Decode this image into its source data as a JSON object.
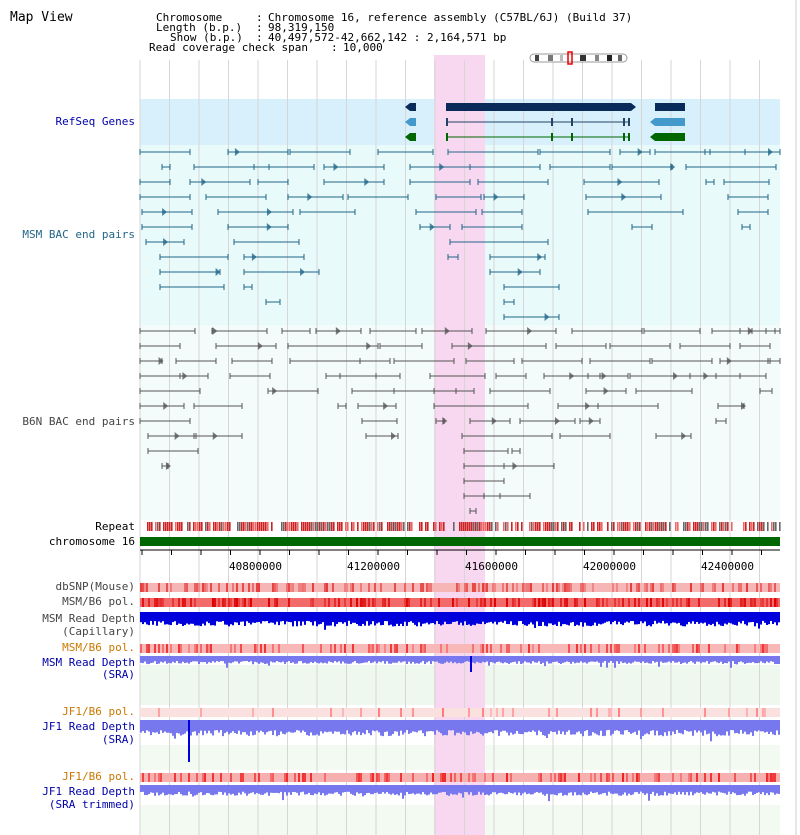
{
  "title": "Map View",
  "info": {
    "chromosome_label": "Chromosome",
    "chromosome_value": "Chromosome 16, reference assembly (C57BL/6J) (Build 37)",
    "length_label": "Length (b.p.)",
    "length_value": "98,319,150",
    "show_label": "Show (b.p.)",
    "show_value": "40,497,572-42,662,142 : 2,164,571 bp",
    "read_coverage_label": "Read coverage check span",
    "read_coverage_value": "10,000"
  },
  "tracks": {
    "refseq": "RefSeq Genes",
    "msm_bac": "MSM BAC end pairs",
    "b6n_bac": "B6N BAC end pairs",
    "repeat": "Repeat",
    "chromosome": "chromosome 16",
    "dbsnp": "dbSNP(Mouse)",
    "msm_b6_pol": "MSM/B6 pol.",
    "msm_depth_cap_1": "MSM Read Depth",
    "msm_depth_cap_2": "(Capillary)",
    "msm_b6_pol_sra": "MSM/B6 pol.",
    "msm_depth_sra_1": "MSM Read Depth",
    "msm_depth_sra_2": "(SRA)",
    "jf1_b6_pol": "JF1/B6 pol.",
    "jf1_depth_1": "JF1 Read Depth",
    "jf1_depth_2": "(SRA)",
    "jf1_b6_pol_trim": "JF1/B6 pol.",
    "jf1_trim_1": "JF1 Read Depth",
    "jf1_trim_2": "(SRA trimmed)"
  },
  "ruler_ticks": [
    "40800000",
    "41200000",
    "41600000",
    "42000000",
    "42400000"
  ],
  "colors": {
    "highlight": "#f8d8f0",
    "refseq_bg": "#d8f0fb",
    "bac_bg": "#e8fafa",
    "msm_line": "#226688",
    "b6n_line": "#555555",
    "gene_dark": "#0a2a5a",
    "gene_green": "#006600",
    "chrom_green": "#006600",
    "snp_red": "#ee3333",
    "depth_blue": "#0000dd",
    "depth_light": "#7777ee"
  }
}
